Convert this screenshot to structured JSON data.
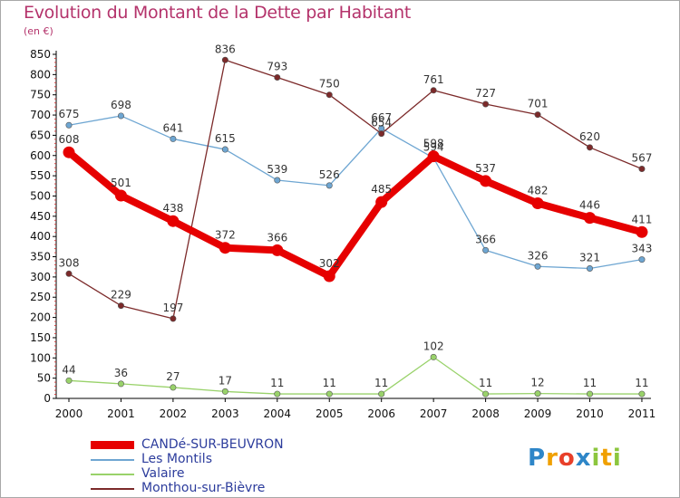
{
  "header": {
    "title": "Evolution du Montant de la Dette par Habitant",
    "unit": "(en €)"
  },
  "logo": {
    "letters": [
      "P",
      "r",
      "o",
      "x",
      "i",
      "t",
      "i"
    ],
    "colors": [
      "#2e86c8",
      "#f0a000",
      "#e8402a",
      "#2e86c8",
      "#8cc63e",
      "#f0a000",
      "#8cc63e"
    ]
  },
  "chart_data": {
    "type": "line",
    "title": "Evolution du Montant de la Dette par Habitant",
    "subtitle": "(en €)",
    "xlabel": "",
    "ylabel": "",
    "x": [
      "2000",
      "2001",
      "2002",
      "2003",
      "2004",
      "2005",
      "2006",
      "2007",
      "2008",
      "2009",
      "2010",
      "2011"
    ],
    "ylim": [
      0,
      850
    ],
    "yticks": [
      0,
      50,
      100,
      150,
      200,
      250,
      300,
      350,
      400,
      450,
      500,
      550,
      600,
      650,
      700,
      750,
      800,
      850
    ],
    "grid": false,
    "legend_position": "bottom-left",
    "series": [
      {
        "name": "CANDé-SUR-BEUVRON",
        "color": "#e60000",
        "emphasis": true,
        "values": [
          608,
          501,
          438,
          372,
          366,
          302,
          485,
          598,
          537,
          482,
          446,
          411
        ]
      },
      {
        "name": "Les Montils",
        "color": "#6ea6d2",
        "emphasis": false,
        "values": [
          675,
          698,
          641,
          615,
          539,
          526,
          667,
          594,
          366,
          326,
          321,
          343
        ]
      },
      {
        "name": "Valaire",
        "color": "#99d26a",
        "emphasis": false,
        "values": [
          44,
          36,
          27,
          17,
          11,
          11,
          11,
          102,
          11,
          12,
          11,
          11
        ]
      },
      {
        "name": "Monthou-sur-Bièvre",
        "color": "#7c2a2a",
        "emphasis": false,
        "values": [
          308,
          229,
          197,
          836,
          793,
          750,
          654,
          761,
          727,
          701,
          620,
          567
        ]
      }
    ]
  }
}
